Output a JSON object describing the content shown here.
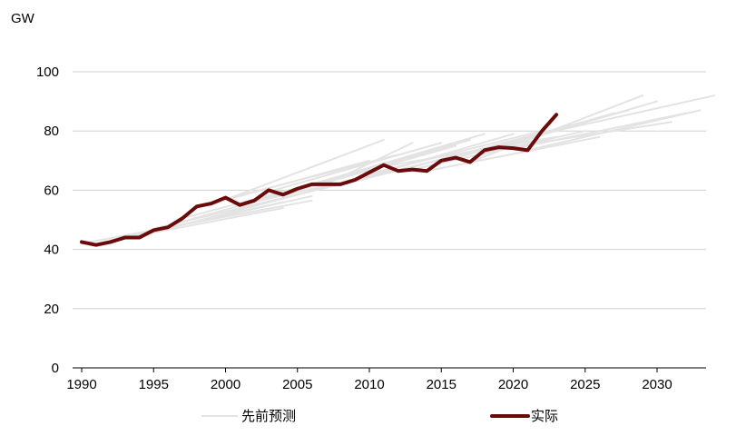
{
  "chart_data": {
    "type": "line",
    "unit_label": "GW",
    "xlim": [
      1990,
      2034
    ],
    "ylim": [
      0,
      100
    ],
    "x_ticks": [
      1990,
      1995,
      2000,
      2005,
      2010,
      2015,
      2020,
      2025,
      2030
    ],
    "y_ticks": [
      0,
      20,
      40,
      60,
      80,
      100
    ],
    "grid": "horizontal",
    "legend_position": "bottom",
    "colors": {
      "forecast": "#e3e3e3",
      "actual": "#6b0a0a",
      "grid": "#d0d0d0",
      "axis": "#000000"
    },
    "legend": {
      "forecast_label": "先前预测",
      "actual_label": "实际"
    },
    "actual": {
      "name": "实际",
      "x": [
        1990,
        1991,
        1992,
        1993,
        1994,
        1995,
        1996,
        1997,
        1998,
        1999,
        2000,
        2001,
        2002,
        2003,
        2004,
        2005,
        2006,
        2007,
        2008,
        2009,
        2010,
        2011,
        2012,
        2013,
        2014,
        2015,
        2016,
        2017,
        2018,
        2019,
        2020,
        2021,
        2022,
        2023
      ],
      "y": [
        42.5,
        41.5,
        42.5,
        44,
        44,
        46.5,
        47.5,
        50.5,
        54.5,
        55.5,
        57.5,
        55,
        56.5,
        60,
        58.5,
        60.5,
        62,
        62,
        62,
        63.5,
        66,
        68.5,
        66.5,
        67,
        66.5,
        70,
        71,
        69.5,
        73.5,
        74.5,
        74.2,
        73.5,
        80,
        85.5
      ]
    },
    "forecasts": [
      {
        "x": [
          1990,
          2006
        ],
        "y": [
          42,
          56.5
        ]
      },
      {
        "x": [
          1991,
          2004
        ],
        "y": [
          42,
          54
        ]
      },
      {
        "x": [
          1992,
          2006
        ],
        "y": [
          43,
          58
        ]
      },
      {
        "x": [
          1993,
          2004
        ],
        "y": [
          44,
          56
        ]
      },
      {
        "x": [
          1994,
          2007
        ],
        "y": [
          44.5,
          61
        ]
      },
      {
        "x": [
          1995,
          2008
        ],
        "y": [
          47,
          62
        ]
      },
      {
        "x": [
          1996,
          2010
        ],
        "y": [
          48,
          67
        ]
      },
      {
        "x": [
          1997,
          2009
        ],
        "y": [
          50.5,
          66
        ]
      },
      {
        "x": [
          1998,
          2010
        ],
        "y": [
          54,
          70
        ]
      },
      {
        "x": [
          1999,
          2011
        ],
        "y": [
          55,
          77
        ]
      },
      {
        "x": [
          2000,
          2012
        ],
        "y": [
          57,
          72
        ]
      },
      {
        "x": [
          2001,
          2013
        ],
        "y": [
          55,
          68
        ]
      },
      {
        "x": [
          2002,
          2014
        ],
        "y": [
          56.5,
          73
        ]
      },
      {
        "x": [
          2003,
          2015
        ],
        "y": [
          59.5,
          76
        ]
      },
      {
        "x": [
          2004,
          2016
        ],
        "y": [
          58.5,
          75
        ]
      },
      {
        "x": [
          2005,
          2017
        ],
        "y": [
          60,
          77
        ]
      },
      {
        "x": [
          2006,
          2018
        ],
        "y": [
          62,
          79
        ]
      },
      {
        "x": [
          2007,
          2013
        ],
        "y": [
          62,
          76
        ]
      },
      {
        "x": [
          2008,
          2020
        ],
        "y": [
          62,
          79
        ]
      },
      {
        "x": [
          2009,
          2021
        ],
        "y": [
          63,
          78
        ]
      },
      {
        "x": [
          2010,
          2022
        ],
        "y": [
          65.5,
          80
        ]
      },
      {
        "x": [
          2011,
          2023
        ],
        "y": [
          68,
          78
        ]
      },
      {
        "x": [
          2012,
          2024
        ],
        "y": [
          66.5,
          82
        ]
      },
      {
        "x": [
          2013,
          2025
        ],
        "y": [
          67,
          80
        ]
      },
      {
        "x": [
          2014,
          2026
        ],
        "y": [
          66.5,
          78
        ]
      },
      {
        "x": [
          2015,
          2027
        ],
        "y": [
          69.5,
          86
        ]
      },
      {
        "x": [
          2016,
          2028
        ],
        "y": [
          71,
          87
        ]
      },
      {
        "x": [
          2017,
          2029
        ],
        "y": [
          69.5,
          92
        ]
      },
      {
        "x": [
          2018,
          2030
        ],
        "y": [
          73,
          90
        ]
      },
      {
        "x": [
          2019,
          2031
        ],
        "y": [
          74,
          83
        ]
      },
      {
        "x": [
          2020,
          2032
        ],
        "y": [
          74,
          86
        ]
      },
      {
        "x": [
          2021,
          2033
        ],
        "y": [
          73.5,
          87
        ]
      },
      {
        "x": [
          2022,
          2034
        ],
        "y": [
          79,
          92
        ]
      }
    ]
  }
}
